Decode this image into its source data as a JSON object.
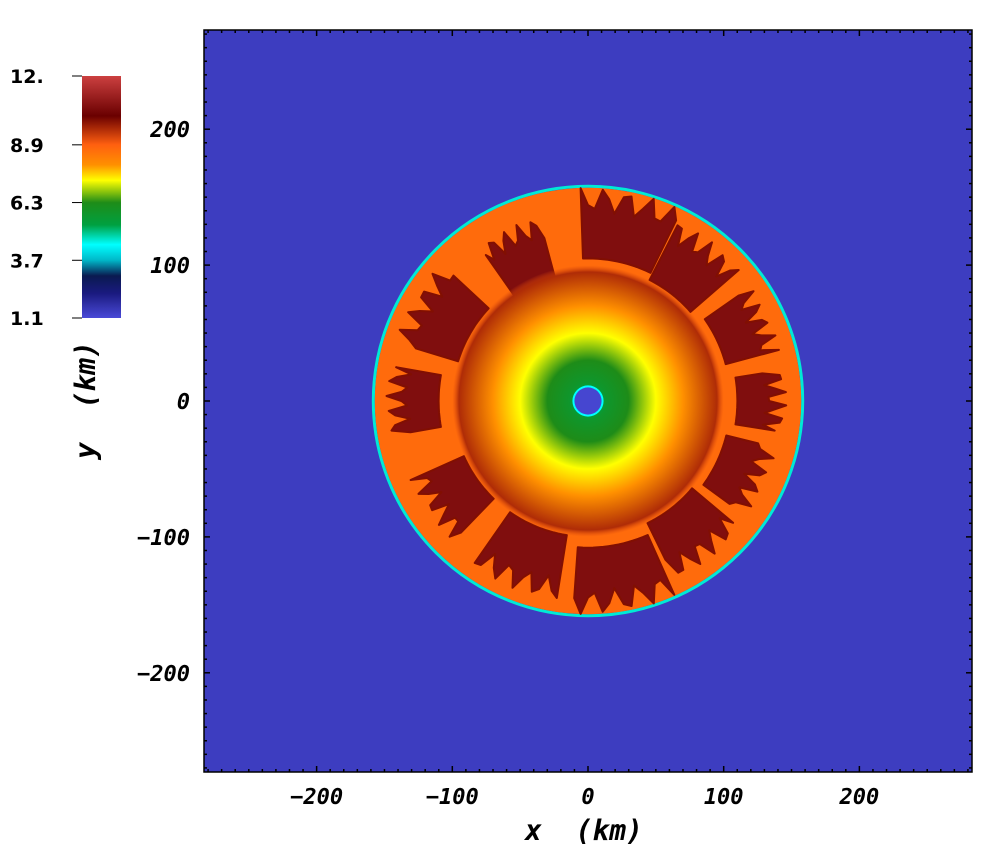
{
  "chart_data": {
    "type": "heatmap",
    "title": "",
    "xlabel": "x  (km)",
    "ylabel": "y  (km)",
    "xlim": [
      -283,
      283
    ],
    "ylim": [
      -273,
      273
    ],
    "x_ticks": [
      -200,
      -100,
      0,
      100,
      200
    ],
    "y_ticks": [
      -200,
      -100,
      0,
      100,
      200
    ],
    "x_tick_labels": [
      "−200",
      "−100",
      "0",
      "100",
      "200"
    ],
    "y_tick_labels": [
      "−200",
      "−100",
      "0",
      "100",
      "200"
    ],
    "colorbar": {
      "min": 1.1,
      "max": 12.0,
      "tick_values": [
        12.0,
        8.9,
        6.3,
        3.7,
        1.1
      ],
      "tick_labels": [
        "12.",
        "8.9",
        "6.3",
        "3.7",
        "1.1"
      ],
      "colormap_stops": [
        {
          "v": 1.1,
          "color": "#4a4ad8"
        },
        {
          "v": 2.2,
          "color": "#1a1a80"
        },
        {
          "v": 3.0,
          "color": "#0a1a50"
        },
        {
          "v": 3.7,
          "color": "#00b8c8"
        },
        {
          "v": 4.4,
          "color": "#00ffff"
        },
        {
          "v": 5.3,
          "color": "#00a040"
        },
        {
          "v": 6.3,
          "color": "#1e8c18"
        },
        {
          "v": 7.3,
          "color": "#ffff00"
        },
        {
          "v": 8.0,
          "color": "#ff9000"
        },
        {
          "v": 8.9,
          "color": "#ff6010"
        },
        {
          "v": 10.2,
          "color": "#6a0000"
        },
        {
          "v": 12.0,
          "color": "#cc4040"
        }
      ]
    },
    "field": {
      "background_value": 1.4,
      "shock_radius_km": 157,
      "shocked_region_value": 8.7,
      "core_radius_km": 10,
      "core_value": 1.2,
      "radial_profile": [
        {
          "r": 10,
          "v": 5.4
        },
        {
          "r": 14,
          "v": 5.8
        },
        {
          "r": 30,
          "v": 6.3
        },
        {
          "r": 50,
          "v": 7.3
        },
        {
          "r": 70,
          "v": 8.0
        },
        {
          "r": 95,
          "v": 9.6
        },
        {
          "r": 157,
          "v": 8.7
        }
      ],
      "plumes": [
        {
          "angle_deg": 78,
          "r_inner": 105,
          "r_outer": 148,
          "width_deg": 28
        },
        {
          "angle_deg": 52,
          "r_inner": 100,
          "r_outer": 140,
          "width_deg": 22
        },
        {
          "angle_deg": 25,
          "r_inner": 105,
          "r_outer": 138,
          "width_deg": 20
        },
        {
          "angle_deg": 0,
          "r_inner": 110,
          "r_outer": 138,
          "width_deg": 18
        },
        {
          "angle_deg": -25,
          "r_inner": 105,
          "r_outer": 135,
          "width_deg": 22
        },
        {
          "angle_deg": -52,
          "r_inner": 100,
          "r_outer": 138,
          "width_deg": 24
        },
        {
          "angle_deg": -80,
          "r_inner": 108,
          "r_outer": 148,
          "width_deg": 28
        },
        {
          "angle_deg": -112,
          "r_inner": 100,
          "r_outer": 140,
          "width_deg": 26
        },
        {
          "angle_deg": -145,
          "r_inner": 100,
          "r_outer": 135,
          "width_deg": 22
        },
        {
          "angle_deg": 180,
          "r_inner": 110,
          "r_outer": 140,
          "width_deg": 20
        },
        {
          "angle_deg": 150,
          "r_inner": 100,
          "r_outer": 140,
          "width_deg": 26
        },
        {
          "angle_deg": 115,
          "r_inner": 95,
          "r_outer": 132,
          "width_deg": 20
        }
      ]
    }
  }
}
